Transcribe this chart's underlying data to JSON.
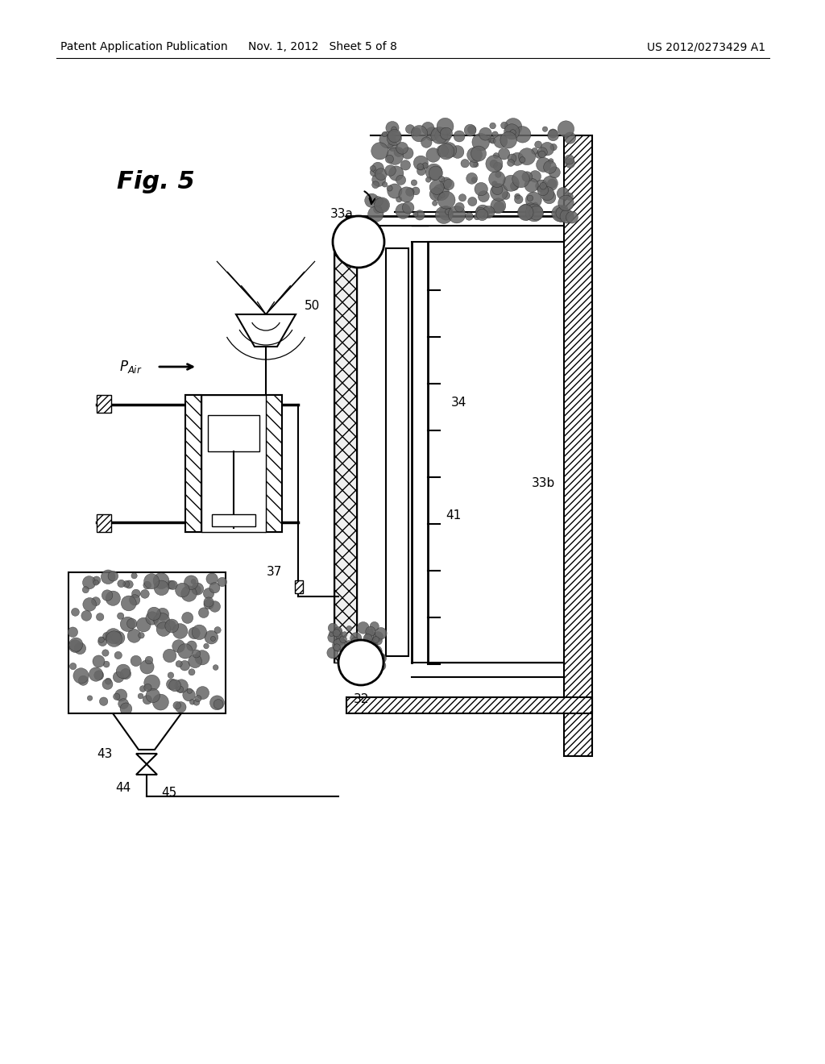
{
  "header_left": "Patent Application Publication",
  "header_mid": "Nov. 1, 2012   Sheet 5 of 8",
  "header_right": "US 2012/0273429 A1",
  "bg_color": "#ffffff"
}
